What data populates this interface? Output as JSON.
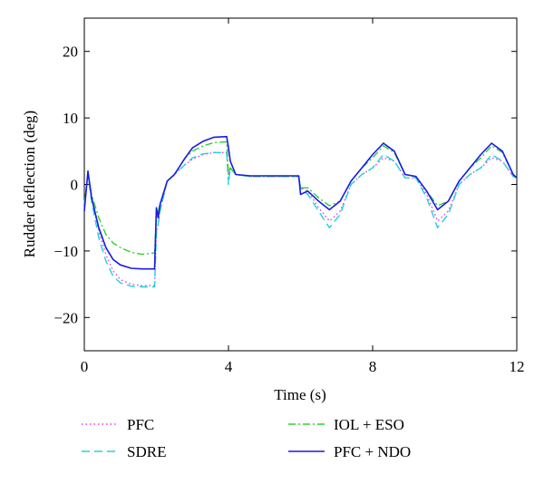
{
  "chart_data": {
    "type": "line",
    "title": "",
    "xlabel": "Time (s)",
    "ylabel": "Rudder deflection (deg)",
    "xlim": [
      0,
      12
    ],
    "ylim": [
      -25,
      25
    ],
    "x_ticks": [
      0,
      4,
      8,
      12
    ],
    "y_ticks": [
      -20,
      -10,
      0,
      10,
      20
    ],
    "x_tick_labels": [
      "0",
      "4",
      "8",
      "12"
    ],
    "y_tick_labels": [
      "−20",
      "−10",
      "0",
      "10",
      "20"
    ],
    "grid": false,
    "legend_placement": "below",
    "series": [
      {
        "name": "PFC",
        "color": "#e040e0",
        "style": "dotted",
        "x": [
          0,
          0.1,
          0.2,
          0.4,
          0.6,
          0.8,
          1.0,
          1.3,
          1.6,
          1.95,
          2.0,
          2.05,
          2.1,
          2.3,
          2.5,
          2.8,
          3.0,
          3.3,
          3.6,
          3.95,
          4.0,
          4.05,
          4.2,
          4.6,
          5.0,
          5.5,
          5.95,
          6.0,
          6.2,
          6.5,
          6.8,
          7.1,
          7.4,
          7.7,
          8.0,
          8.3,
          8.6,
          8.9,
          9.2,
          9.5,
          9.8,
          10.1,
          10.4,
          10.7,
          11.0,
          11.3,
          11.6,
          11.9,
          12.0
        ],
        "y": [
          -3,
          1.5,
          -2,
          -7,
          -10.5,
          -13,
          -14.3,
          -15,
          -15.2,
          -15.2,
          -7,
          -6,
          -4,
          0.5,
          1.5,
          3,
          3.8,
          4.5,
          4.8,
          4.8,
          1.5,
          2.5,
          1.5,
          1.2,
          1.2,
          1.2,
          1.2,
          -0.5,
          -1,
          -3.5,
          -5.5,
          -4,
          0,
          1.5,
          2.5,
          4,
          3.5,
          1,
          1,
          -1.5,
          -5.5,
          -4,
          0,
          1.5,
          2.5,
          4,
          3.5,
          1.2,
          1
        ]
      },
      {
        "name": "SDRE",
        "color": "#22d0e0",
        "style": "dashed",
        "x": [
          0,
          0.1,
          0.2,
          0.4,
          0.6,
          0.8,
          1.0,
          1.3,
          1.6,
          1.95,
          2.0,
          2.05,
          2.1,
          2.3,
          2.5,
          2.8,
          3.0,
          3.3,
          3.6,
          3.95,
          4.0,
          4.05,
          4.2,
          4.6,
          5.0,
          5.5,
          5.95,
          6.0,
          6.2,
          6.5,
          6.8,
          7.1,
          7.4,
          7.7,
          8.0,
          8.3,
          8.6,
          8.9,
          9.2,
          9.5,
          9.8,
          10.1,
          10.4,
          10.7,
          11.0,
          11.3,
          11.6,
          11.9,
          12.0
        ],
        "y": [
          -3,
          1.5,
          -2.5,
          -8,
          -11.5,
          -13.8,
          -14.8,
          -15.3,
          -15.4,
          -15.4,
          -7,
          -6,
          -4,
          0.5,
          1.5,
          3,
          4,
          4.6,
          4.8,
          4.8,
          0,
          2.5,
          1.5,
          1.2,
          1.2,
          1.2,
          1.2,
          -0.5,
          -1.5,
          -4,
          -6.5,
          -4.5,
          0,
          1.5,
          2.5,
          4.5,
          3.5,
          1,
          1,
          -2,
          -6.5,
          -4.5,
          0,
          1.5,
          2.5,
          4.5,
          3.5,
          1.2,
          1
        ]
      },
      {
        "name": "IOL + ESO",
        "color": "#30d030",
        "style": "dashdot",
        "x": [
          0,
          0.1,
          0.2,
          0.4,
          0.6,
          0.8,
          1.0,
          1.3,
          1.6,
          1.95,
          2.0,
          2.05,
          2.1,
          2.3,
          2.5,
          2.8,
          3.0,
          3.3,
          3.6,
          3.95,
          4.0,
          4.05,
          4.2,
          4.6,
          5.0,
          5.5,
          5.95,
          6.0,
          6.2,
          6.5,
          6.8,
          7.1,
          7.4,
          7.7,
          8.0,
          8.3,
          8.6,
          8.9,
          9.2,
          9.5,
          9.8,
          10.1,
          10.4,
          10.7,
          11.0,
          11.3,
          11.6,
          11.9,
          12.0
        ],
        "y": [
          -3,
          1.5,
          -1.5,
          -5,
          -7.5,
          -8.8,
          -9.5,
          -10.2,
          -10.5,
          -10.3,
          -5,
          -4,
          -3,
          0.5,
          1.5,
          4,
          5,
          5.8,
          6.3,
          6.4,
          1.5,
          2.5,
          1.5,
          1.2,
          1.2,
          1.2,
          1.2,
          -0.5,
          -0.5,
          -2,
          -3.2,
          -2.5,
          0.5,
          2.5,
          4,
          5.8,
          4.8,
          1.5,
          1.2,
          -1,
          -3.2,
          -2.5,
          0.5,
          2.5,
          4,
          5.8,
          4.8,
          1.5,
          1
        ]
      },
      {
        "name": "PFC + NDO",
        "color": "#1a1ae6",
        "style": "solid",
        "x": [
          0,
          0.1,
          0.2,
          0.4,
          0.6,
          0.8,
          1.0,
          1.3,
          1.6,
          1.95,
          2.0,
          2.05,
          2.1,
          2.3,
          2.5,
          2.8,
          3.0,
          3.3,
          3.6,
          3.95,
          4.0,
          4.05,
          4.2,
          4.6,
          5.0,
          5.5,
          5.95,
          6.0,
          6.2,
          6.5,
          6.8,
          7.1,
          7.4,
          7.7,
          8.0,
          8.3,
          8.6,
          8.9,
          9.2,
          9.5,
          9.8,
          10.1,
          10.4,
          10.7,
          11.0,
          11.3,
          11.6,
          11.9,
          12.0
        ],
        "y": [
          -4,
          2,
          -2,
          -6.5,
          -9.5,
          -11.3,
          -12.1,
          -12.6,
          -12.7,
          -12.7,
          -3.5,
          -5,
          -3,
          0.5,
          1.5,
          4,
          5.5,
          6.5,
          7.1,
          7.2,
          5.5,
          3.5,
          1.5,
          1.3,
          1.3,
          1.3,
          1.3,
          -1.5,
          -1,
          -2.5,
          -3.8,
          -2.5,
          0.5,
          2.5,
          4.5,
          6.2,
          5,
          1.5,
          1.2,
          -1,
          -3.8,
          -2.5,
          0.5,
          2.5,
          4.5,
          6.2,
          5,
          1.5,
          1
        ]
      }
    ]
  }
}
